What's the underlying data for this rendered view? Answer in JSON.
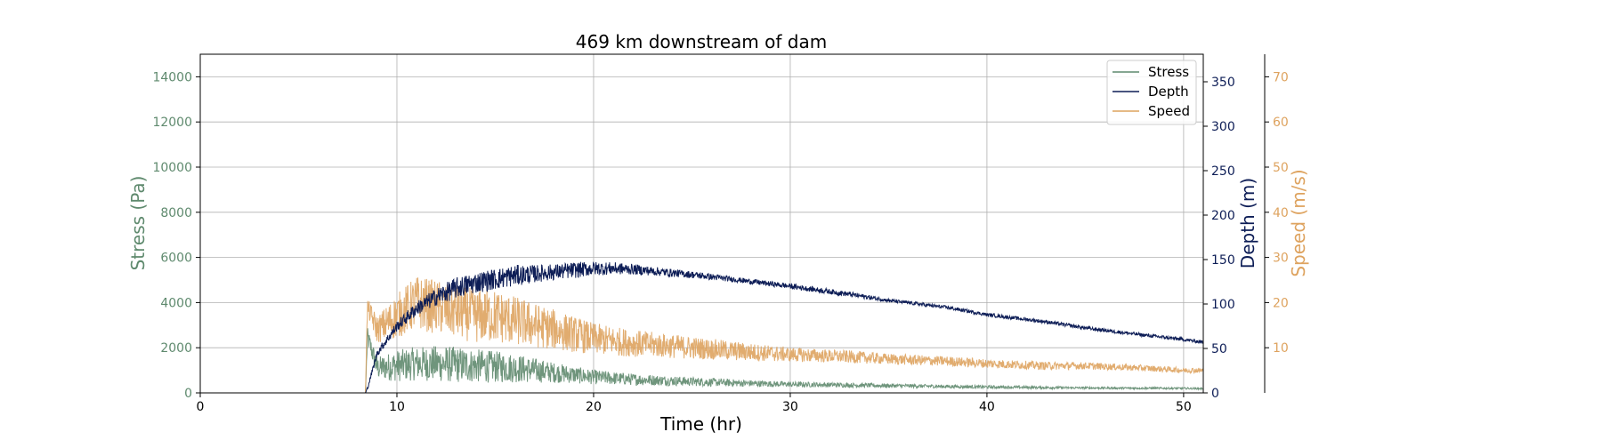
{
  "chart_data": {
    "type": "line",
    "title": "469 km downstream of dam",
    "xlabel": "Time (hr)",
    "xlim": [
      0,
      51
    ],
    "xticks": [
      0,
      10,
      20,
      30,
      40,
      50
    ],
    "grid": true,
    "legend_position": "top-right",
    "axes": {
      "stress": {
        "label": "Stress (Pa)",
        "color": "#5f8a6e",
        "ylim": [
          0,
          15000
        ],
        "ticks": [
          0,
          2000,
          4000,
          6000,
          8000,
          10000,
          12000,
          14000
        ]
      },
      "depth": {
        "label": "Depth (m)",
        "color": "#0d1d56",
        "ylim": [
          0,
          381
        ],
        "ticks": [
          0,
          50,
          100,
          150,
          200,
          250,
          300,
          350
        ]
      },
      "speed": {
        "label": "Speed (m/s)",
        "color": "#dea35f",
        "ylim": [
          0,
          75
        ],
        "ticks": [
          10,
          20,
          30,
          40,
          50,
          60,
          70
        ]
      }
    },
    "series": [
      {
        "name": "Stress",
        "axis": "stress",
        "color": "#5f8a6e",
        "x": [
          0,
          8.4,
          8.5,
          9,
          10,
          11,
          12,
          13,
          14,
          15,
          16,
          17,
          18,
          19,
          20,
          22,
          25,
          28,
          30,
          35,
          40,
          45,
          50,
          51
        ],
        "values": [
          0,
          0,
          2500,
          1100,
          1200,
          1300,
          1300,
          1250,
          1200,
          1150,
          1100,
          1000,
          900,
          800,
          700,
          600,
          500,
          420,
          380,
          320,
          260,
          220,
          200,
          190
        ],
        "noise": [
          0,
          0,
          400,
          500,
          700,
          750,
          800,
          800,
          750,
          700,
          650,
          550,
          450,
          380,
          320,
          260,
          200,
          150,
          120,
          90,
          70,
          50,
          40,
          40
        ]
      },
      {
        "name": "Depth",
        "axis": "depth",
        "color": "#0d1d56",
        "x": [
          0,
          8.4,
          8.5,
          9,
          10,
          11,
          12,
          13,
          14,
          15,
          16,
          17,
          18,
          19,
          20,
          21,
          22,
          23,
          25,
          27,
          30,
          33,
          35,
          38,
          40,
          43,
          45,
          48,
          50,
          51
        ],
        "values": [
          0,
          0,
          5,
          45,
          75,
          95,
          108,
          118,
          124,
          128,
          132,
          134,
          136,
          138,
          140,
          140,
          139,
          137,
          133,
          128,
          120,
          111,
          104,
          96,
          88,
          80,
          73,
          65,
          60,
          57
        ],
        "noise": [
          0,
          0,
          2,
          4,
          6,
          8,
          10,
          12,
          12,
          12,
          12,
          10,
          9,
          9,
          8,
          7,
          6,
          5,
          4,
          3,
          3,
          3,
          2,
          2,
          2,
          2,
          2,
          2,
          2,
          2
        ]
      },
      {
        "name": "Speed",
        "axis": "speed",
        "color": "#dea35f",
        "x": [
          0,
          8.4,
          8.5,
          9,
          10,
          11,
          12,
          13,
          14,
          15,
          16,
          17,
          18,
          19,
          20,
          22,
          25,
          28,
          30,
          33,
          35,
          38,
          40,
          43,
          45,
          48,
          50,
          51
        ],
        "values": [
          0,
          0,
          19,
          14,
          17,
          20,
          19,
          18,
          17,
          17,
          16,
          15,
          14,
          13,
          12,
          11,
          10,
          9,
          8.5,
          8,
          7.5,
          7,
          6.5,
          6,
          6,
          5.5,
          5,
          5
        ],
        "noise": [
          0,
          0,
          2,
          3,
          5,
          6,
          6,
          6,
          6,
          6,
          5.5,
          5,
          4.5,
          4,
          3.5,
          3,
          2.5,
          2,
          1.6,
          1.4,
          1.2,
          1.1,
          1,
          0.9,
          0.8,
          0.7,
          0.6,
          0.6
        ]
      }
    ]
  }
}
